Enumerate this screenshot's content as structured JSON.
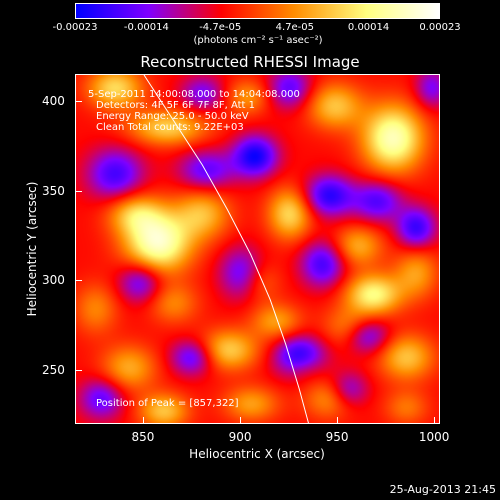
{
  "chart_data": {
    "type": "heatmap",
    "title": "Reconstructed RHESSI Image",
    "xlabel": "Heliocentric X (arcsec)",
    "ylabel": "Heliocentric Y (arcsec)",
    "xlim": [
      815,
      1003
    ],
    "ylim": [
      220,
      415
    ],
    "x_ticks": [
      850,
      900,
      950,
      1000
    ],
    "y_ticks": [
      250,
      300,
      350,
      400
    ],
    "x_tick_labels": [
      "850",
      "900",
      "950",
      "1000"
    ],
    "y_tick_labels": [
      "250",
      "300",
      "350",
      "400"
    ],
    "colorbar": {
      "range": [
        -0.00023,
        0.00023
      ],
      "tick_values": [
        -0.00023,
        -0.00014,
        -4.7e-05,
        4.7e-05,
        0.00014,
        0.00023
      ],
      "tick_labels": [
        "-0.00023",
        "-0.00014",
        "-4.7e-05",
        "4.7e-05",
        "0.00014",
        "0.00023"
      ],
      "units": "(photons cm⁻² s⁻¹ asec⁻²)",
      "colors": [
        "#0000ff",
        "#7f00ff",
        "#ff0000",
        "#ff8c00",
        "#ffff80",
        "#ffffff"
      ]
    },
    "annotations": {
      "time": "5-Sep-2011 14:00:08.000 to 14:04:08.000",
      "detectors": "Detectors: 4F 5F 6F 7F 8F, Att 1",
      "energy": "Energy Range: 25.0 - 50.0 keV",
      "clean": "Clean    Total counts: 9.22E+03",
      "peak": "Position of Peak = [857,322]"
    },
    "peak": {
      "x": 857,
      "y": 322
    },
    "sources": [
      {
        "x": 857,
        "y": 322,
        "peak": 0.00023,
        "sx": 12,
        "sy": 12
      },
      {
        "x": 845,
        "y": 338,
        "peak": 0.00012,
        "sx": 10,
        "sy": 8
      },
      {
        "x": 880,
        "y": 338,
        "peak": 0.00012,
        "sx": 10,
        "sy": 10
      },
      {
        "x": 978,
        "y": 380,
        "peak": 0.00022,
        "sx": 11,
        "sy": 13
      },
      {
        "x": 948,
        "y": 398,
        "peak": 0.00013,
        "sx": 10,
        "sy": 9
      },
      {
        "x": 862,
        "y": 386,
        "peak": 0.00014,
        "sx": 14,
        "sy": 7
      },
      {
        "x": 835,
        "y": 408,
        "peak": 0.00015,
        "sx": 10,
        "sy": 8
      },
      {
        "x": 903,
        "y": 403,
        "peak": 9e-05,
        "sx": 8,
        "sy": 7
      },
      {
        "x": 968,
        "y": 293,
        "peak": 0.00018,
        "sx": 10,
        "sy": 8
      },
      {
        "x": 960,
        "y": 320,
        "peak": 0.00011,
        "sx": 9,
        "sy": 8
      },
      {
        "x": 955,
        "y": 275,
        "peak": 8e-05,
        "sx": 9,
        "sy": 8
      },
      {
        "x": 985,
        "y": 258,
        "peak": 0.00013,
        "sx": 10,
        "sy": 9
      },
      {
        "x": 990,
        "y": 305,
        "peak": 0.0001,
        "sx": 8,
        "sy": 10
      },
      {
        "x": 925,
        "y": 338,
        "peak": 0.00015,
        "sx": 8,
        "sy": 10
      },
      {
        "x": 918,
        "y": 278,
        "peak": 0.0001,
        "sx": 9,
        "sy": 7
      },
      {
        "x": 893,
        "y": 262,
        "peak": 0.00014,
        "sx": 11,
        "sy": 8
      },
      {
        "x": 865,
        "y": 288,
        "peak": 8e-05,
        "sx": 9,
        "sy": 8
      },
      {
        "x": 842,
        "y": 252,
        "peak": 0.00011,
        "sx": 10,
        "sy": 9
      },
      {
        "x": 860,
        "y": 228,
        "peak": 0.00013,
        "sx": 9,
        "sy": 7
      },
      {
        "x": 905,
        "y": 232,
        "peak": 0.0001,
        "sx": 10,
        "sy": 7
      },
      {
        "x": 945,
        "y": 235,
        "peak": 9e-05,
        "sx": 9,
        "sy": 8
      },
      {
        "x": 985,
        "y": 230,
        "peak": 7e-05,
        "sx": 8,
        "sy": 7
      },
      {
        "x": 932,
        "y": 253,
        "peak": 6e-05,
        "sx": 7,
        "sy": 6
      },
      {
        "x": 825,
        "y": 285,
        "peak": 8e-05,
        "sx": 8,
        "sy": 10
      },
      {
        "x": 910,
        "y": 300,
        "peak": 6e-05,
        "sx": 7,
        "sy": 8
      },
      {
        "x": 882,
        "y": 362,
        "peak": -0.00012,
        "sx": 10,
        "sy": 8
      },
      {
        "x": 907,
        "y": 370,
        "peak": -0.00018,
        "sx": 8,
        "sy": 8
      },
      {
        "x": 945,
        "y": 348,
        "peak": -0.00016,
        "sx": 9,
        "sy": 8
      },
      {
        "x": 942,
        "y": 310,
        "peak": -0.00014,
        "sx": 8,
        "sy": 9
      },
      {
        "x": 930,
        "y": 258,
        "peak": -0.00018,
        "sx": 9,
        "sy": 8
      },
      {
        "x": 875,
        "y": 258,
        "peak": -0.00013,
        "sx": 8,
        "sy": 7
      },
      {
        "x": 848,
        "y": 300,
        "peak": -0.00012,
        "sx": 8,
        "sy": 8
      },
      {
        "x": 835,
        "y": 360,
        "peak": -0.00014,
        "sx": 10,
        "sy": 10
      },
      {
        "x": 900,
        "y": 305,
        "peak": -0.00011,
        "sx": 8,
        "sy": 10
      },
      {
        "x": 970,
        "y": 345,
        "peak": -0.00013,
        "sx": 9,
        "sy": 8
      },
      {
        "x": 990,
        "y": 330,
        "peak": -0.00015,
        "sx": 7,
        "sy": 8
      },
      {
        "x": 965,
        "y": 270,
        "peak": -0.00012,
        "sx": 8,
        "sy": 7
      },
      {
        "x": 828,
        "y": 235,
        "peak": -0.00012,
        "sx": 8,
        "sy": 8
      },
      {
        "x": 880,
        "y": 405,
        "peak": -0.0001,
        "sx": 8,
        "sy": 7
      },
      {
        "x": 925,
        "y": 408,
        "peak": -0.00012,
        "sx": 8,
        "sy": 8
      },
      {
        "x": 998,
        "y": 408,
        "peak": -0.0001,
        "sx": 6,
        "sy": 8
      },
      {
        "x": 955,
        "y": 240,
        "peak": -0.0001,
        "sx": 7,
        "sy": 7
      }
    ],
    "limb": [
      [
        850,
        415
      ],
      [
        865,
        390
      ],
      [
        880,
        365
      ],
      [
        893,
        340
      ],
      [
        905,
        315
      ],
      [
        915,
        290
      ],
      [
        923,
        265
      ],
      [
        930,
        240
      ],
      [
        935,
        220
      ]
    ]
  },
  "footer": {
    "timestamp": "25-Aug-2013 21:45"
  }
}
